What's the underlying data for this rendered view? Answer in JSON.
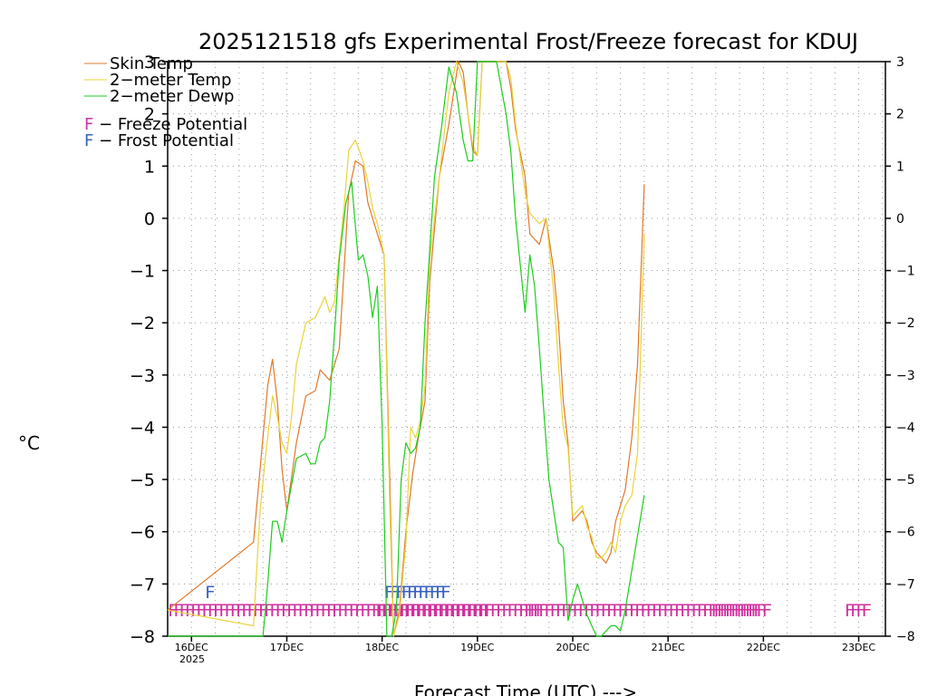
{
  "chart_data": {
    "type": "line",
    "title": "2025121518 gfs Experimental Frost/Freeze forecast for KDUJ",
    "xlabel": "Forecast Time (UTC) --->",
    "ylabel": "°C",
    "ylim": [
      -8,
      3
    ],
    "xlim": [
      15.75,
      23.28
    ],
    "yticks": [
      3,
      2,
      1,
      0,
      -1,
      -2,
      -3,
      -4,
      -5,
      -6,
      -7,
      -8
    ],
    "ytick_labels": [
      "3",
      "2",
      "1",
      "0",
      "−1",
      "−2",
      "−3",
      "−4",
      "−5",
      "−6",
      "−7",
      "−8"
    ],
    "xticks": [
      16,
      17,
      18,
      19,
      20,
      21,
      22,
      23
    ],
    "xtick_labels": [
      "16DEC",
      "17DEC",
      "18DEC",
      "19DEC",
      "20DEC",
      "21DEC",
      "22DEC",
      "23DEC"
    ],
    "year_label": "2025",
    "grid": true,
    "legend_position": "top-left",
    "series": [
      {
        "name": "Skin Temp",
        "label": "Skin Temp",
        "color": "#e07828",
        "x": [
          15.75,
          16.65,
          16.72,
          16.8,
          16.85,
          16.9,
          16.95,
          17.0,
          17.1,
          17.2,
          17.3,
          17.35,
          17.45,
          17.55,
          17.6,
          17.65,
          17.72,
          17.8,
          17.85,
          17.95,
          18.02,
          18.08,
          18.12,
          18.18,
          18.25,
          18.32,
          18.38,
          18.45,
          18.5,
          18.6,
          18.7,
          18.8,
          18.85,
          18.9,
          18.95,
          19.0,
          19.05,
          19.1,
          19.2,
          19.3,
          19.35,
          19.4,
          19.5,
          19.55,
          19.6,
          19.65,
          19.72,
          19.8,
          19.85,
          19.9,
          19.95,
          20.0,
          20.05,
          20.1,
          20.15,
          20.2,
          20.25,
          20.3,
          20.35,
          20.4,
          20.45,
          20.55,
          20.62,
          20.68,
          20.75
        ],
        "values": [
          -7.5,
          -6.2,
          -4.8,
          -3.2,
          -2.7,
          -3.5,
          -4.8,
          -5.6,
          -4.3,
          -3.4,
          -3.3,
          -2.9,
          -3.1,
          -2.5,
          -1.0,
          0.5,
          1.1,
          1.0,
          0.3,
          -0.3,
          -0.7,
          -5.0,
          -8.0,
          -7.5,
          -6.0,
          -4.9,
          -4.2,
          -3.5,
          -1.2,
          0.8,
          1.8,
          3.0,
          2.8,
          2.0,
          1.3,
          1.2,
          3.0,
          3.0,
          3.0,
          3.0,
          2.5,
          1.7,
          0.8,
          -0.3,
          -0.4,
          -0.5,
          0.0,
          -1.0,
          -2.0,
          -3.5,
          -4.3,
          -5.8,
          -5.7,
          -5.6,
          -5.8,
          -6.2,
          -6.4,
          -6.5,
          -6.6,
          -6.4,
          -5.8,
          -5.2,
          -4.2,
          -2.8,
          0.65
        ]
      },
      {
        "name": "2-meter Temp",
        "label": "2−meter Temp",
        "color": "#e8d43a",
        "x": [
          15.75,
          16.65,
          16.72,
          16.78,
          16.85,
          16.9,
          16.95,
          17.0,
          17.05,
          17.1,
          17.2,
          17.3,
          17.4,
          17.45,
          17.5,
          17.55,
          17.6,
          17.65,
          17.72,
          17.8,
          17.85,
          17.9,
          17.95,
          18.02,
          18.08,
          18.12,
          18.18,
          18.25,
          18.3,
          18.35,
          18.4,
          18.45,
          18.5,
          18.6,
          18.7,
          18.78,
          18.85,
          18.9,
          18.95,
          19.0,
          19.05,
          19.1,
          19.2,
          19.3,
          19.35,
          19.4,
          19.5,
          19.55,
          19.6,
          19.65,
          19.72,
          19.8,
          19.85,
          19.9,
          19.95,
          20.0,
          20.05,
          20.1,
          20.15,
          20.2,
          20.25,
          20.3,
          20.35,
          20.4,
          20.45,
          20.5,
          20.55,
          20.62,
          20.68,
          20.75
        ],
        "values": [
          -7.5,
          -7.8,
          -5.6,
          -4.5,
          -3.4,
          -3.8,
          -4.3,
          -4.5,
          -3.8,
          -2.8,
          -2.0,
          -1.9,
          -1.5,
          -1.8,
          -1.6,
          -0.7,
          0.2,
          1.3,
          1.5,
          1.1,
          0.7,
          0.2,
          -0.1,
          -0.7,
          -5.5,
          -8.0,
          -7.6,
          -6.2,
          -4.0,
          -4.2,
          -3.9,
          -3.2,
          -0.8,
          0.8,
          2.4,
          3.0,
          2.6,
          2.0,
          1.4,
          1.2,
          3.0,
          3.0,
          3.0,
          3.0,
          2.7,
          1.8,
          0.5,
          0.1,
          0.0,
          -0.1,
          0.0,
          -1.4,
          -2.8,
          -4.0,
          -4.4,
          -5.7,
          -5.6,
          -5.5,
          -5.9,
          -6.1,
          -6.5,
          -6.5,
          -6.4,
          -6.2,
          -6.4,
          -5.8,
          -5.5,
          -5.3,
          -4.5,
          -0.3
        ]
      },
      {
        "name": "2-meter Dewp",
        "label": "2−meter Dewp",
        "color": "#1ecc1e",
        "x": [
          15.75,
          16.75,
          16.8,
          16.85,
          16.9,
          16.95,
          17.0,
          17.1,
          17.2,
          17.25,
          17.3,
          17.35,
          17.4,
          17.45,
          17.5,
          17.55,
          17.62,
          17.68,
          17.75,
          17.8,
          17.85,
          17.9,
          17.95,
          18.0,
          18.05,
          18.1,
          18.15,
          18.2,
          18.25,
          18.3,
          18.35,
          18.4,
          18.45,
          18.55,
          18.62,
          18.7,
          18.78,
          18.85,
          18.9,
          18.95,
          19.0,
          19.05,
          19.1,
          19.2,
          19.3,
          19.35,
          19.4,
          19.5,
          19.55,
          19.6,
          19.65,
          19.7,
          19.75,
          19.85,
          19.9,
          19.95,
          20.0,
          20.05,
          20.1,
          20.15,
          20.2,
          20.25,
          20.3,
          20.35,
          20.4,
          20.45,
          20.5,
          20.55,
          20.65,
          20.75
        ],
        "values": [
          -8.0,
          -8.0,
          -7.0,
          -5.8,
          -5.8,
          -6.2,
          -5.6,
          -4.6,
          -4.5,
          -4.7,
          -4.7,
          -4.3,
          -4.2,
          -3.5,
          -2.2,
          -0.8,
          0.3,
          0.7,
          -0.8,
          -0.7,
          -1.1,
          -1.9,
          -1.3,
          -4.0,
          -8.0,
          -8.0,
          -7.5,
          -5.0,
          -4.3,
          -4.5,
          -4.4,
          -4.0,
          -2.0,
          0.8,
          1.7,
          2.9,
          2.4,
          1.5,
          1.1,
          1.1,
          3.0,
          3.0,
          3.0,
          3.0,
          2.0,
          1.3,
          0.0,
          -1.8,
          -0.7,
          -1.3,
          -2.5,
          -3.8,
          -5.0,
          -6.2,
          -6.3,
          -7.7,
          -7.3,
          -7.0,
          -7.3,
          -7.6,
          -7.8,
          -8.0,
          -8.0,
          -7.9,
          -7.8,
          -7.8,
          -7.9,
          -7.5,
          -6.4,
          -5.3
        ]
      }
    ],
    "freeze_potential": {
      "label": "F − Freeze Potential",
      "letter": "F",
      "color": "#d0309e",
      "y_value": -7.5,
      "groups": [
        {
          "start": 15.75,
          "text": "FFFFFFFFFFFFFFFFFFFFFFFFFFFFFFFFFFFFFFFFFFFFFFFFFFFFFFFFFFFFFFFFFF"
        },
        {
          "start": 17.93,
          "text": "FFFFFFFFFFFFFFFFFFFF"
        },
        {
          "start": 19.52,
          "text": "FFFFFFFFFFFFFFFFFFFFFFFFFFFFFFFFFFFFFFFFF"
        },
        {
          "start": 21.45,
          "text": "FFFFFFFFFF"
        },
        {
          "start": 22.85,
          "text": "FFFF"
        }
      ]
    },
    "frost_potential": {
      "label": "F − Frost Potential",
      "letter": "F",
      "color": "#3860c0",
      "y_value": -7.15,
      "groups": [
        {
          "start": 16.14,
          "text": "F"
        },
        {
          "start": 18.02,
          "text": "FFFFFFFFFFF"
        }
      ]
    }
  }
}
